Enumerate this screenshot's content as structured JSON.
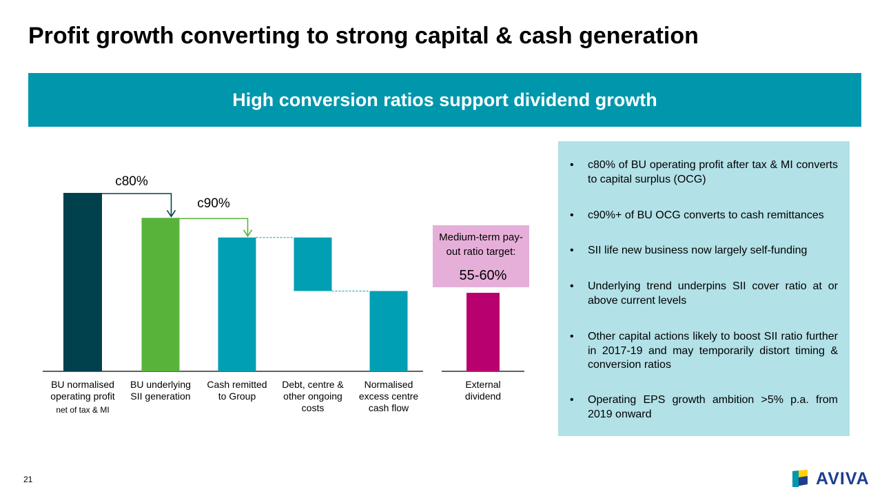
{
  "title": "Profit growth converting to strong capital & cash generation",
  "banner": {
    "text": "High conversion ratios support dividend growth"
  },
  "colors": {
    "banner": "#0097ad",
    "panel": "#b2e1e7",
    "dark_teal": "#00414d",
    "green": "#58b33b",
    "teal": "#009fb4",
    "magenta": "#b8006f",
    "pink_box": "#e6afd9",
    "brand_blue": "#1d3d8f"
  },
  "chart_data": {
    "type": "bar",
    "subtype": "waterfall",
    "categories": [
      [
        "BU normalised",
        "operating profit",
        "net of tax & MI"
      ],
      [
        "BU underlying",
        "SII generation"
      ],
      [
        "Cash remitted",
        "to Group"
      ],
      [
        "Debt, centre &",
        "other ongoing",
        "costs"
      ],
      [
        "Normalised",
        "excess centre",
        "cash flow"
      ],
      [
        "External",
        "dividend"
      ]
    ],
    "bars": [
      {
        "start": 0,
        "end": 100,
        "color": "#00414d"
      },
      {
        "start": 0,
        "end": 86,
        "color": "#58b33b"
      },
      {
        "start": 0,
        "end": 75,
        "color": "#009fb4"
      },
      {
        "start": 45,
        "end": 75,
        "color": "#009fb4"
      },
      {
        "start": 0,
        "end": 45,
        "color": "#009fb4"
      },
      {
        "start": 0,
        "end": 44,
        "color": "#b8006f"
      }
    ],
    "ylim": [
      0,
      100
    ],
    "annotations": [
      {
        "label": "c80%",
        "from_bar": 0,
        "to_bar": 1,
        "color": "#00414d"
      },
      {
        "label": "c90%",
        "from_bar": 1,
        "to_bar": 2,
        "color": "#58b33b"
      }
    ],
    "target_box": {
      "lines": [
        "Medium-term pay-",
        "out ratio target:"
      ],
      "value": "55-60%"
    },
    "xlabel": "",
    "ylabel": ""
  },
  "bullets": [
    "c80% of BU operating profit after tax & MI converts to capital surplus (OCG)",
    "c90%+ of BU OCG converts to cash remittances",
    "SII life new business now largely self-funding",
    "Underlying trend underpins SII cover ratio at or above current levels",
    "Other capital actions likely to boost SII ratio further in 2017-19 and may temporarily distort timing & conversion ratios",
    "Operating EPS growth ambition >5% p.a. from 2019 onward"
  ],
  "bullet_glyph": "•",
  "page_number": "21",
  "logo": {
    "text": "AVIVA",
    "icon": "aviva-flag-icon"
  }
}
